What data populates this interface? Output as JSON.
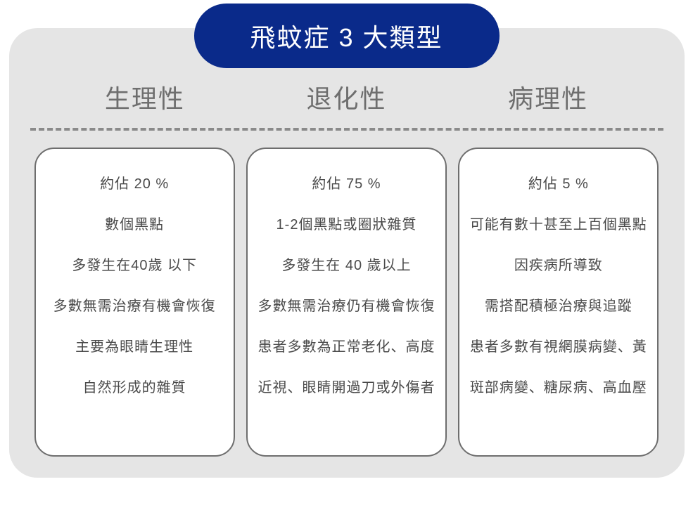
{
  "title": "飛蚊症 3 大類型",
  "colors": {
    "title_bg": "#0a2a8a",
    "title_text": "#ffffff",
    "container_bg": "#e5e5e5",
    "header_text": "#6e6e6e",
    "divider": "#8a8a8a",
    "card_bg": "#ffffff",
    "card_border": "#6e6e6e",
    "body_text": "#4a4a4a"
  },
  "typography": {
    "title_fontsize": 36,
    "header_fontsize": 36,
    "body_fontsize": 20
  },
  "layout": {
    "type": "infographic",
    "columns": 3,
    "container_radius": 40,
    "title_radius": 60,
    "card_radius": 28,
    "divider_style": "dashed"
  },
  "categories": [
    {
      "header": "生理性",
      "lines": [
        "約佔 20 %",
        "數個黑點",
        "多發生在40歲 以下",
        "多數無需治療有機會恢復",
        "主要為眼睛生理性",
        "自然形成的雜質"
      ]
    },
    {
      "header": "退化性",
      "lines": [
        "約佔 75 %",
        "1-2個黑點或圈狀雜質",
        "多發生在 40 歲以上",
        "多數無需治療仍有機會恢復",
        "患者多數為正常老化、高度",
        "近視、眼睛開過刀或外傷者"
      ]
    },
    {
      "header": "病理性",
      "lines": [
        "約佔 5 %",
        "可能有數十甚至上百個黑點",
        "因疾病所導致",
        "需搭配積極治療與追蹤",
        "患者多數有視網膜病變、黃",
        "斑部病變、糖尿病、高血壓"
      ]
    }
  ]
}
